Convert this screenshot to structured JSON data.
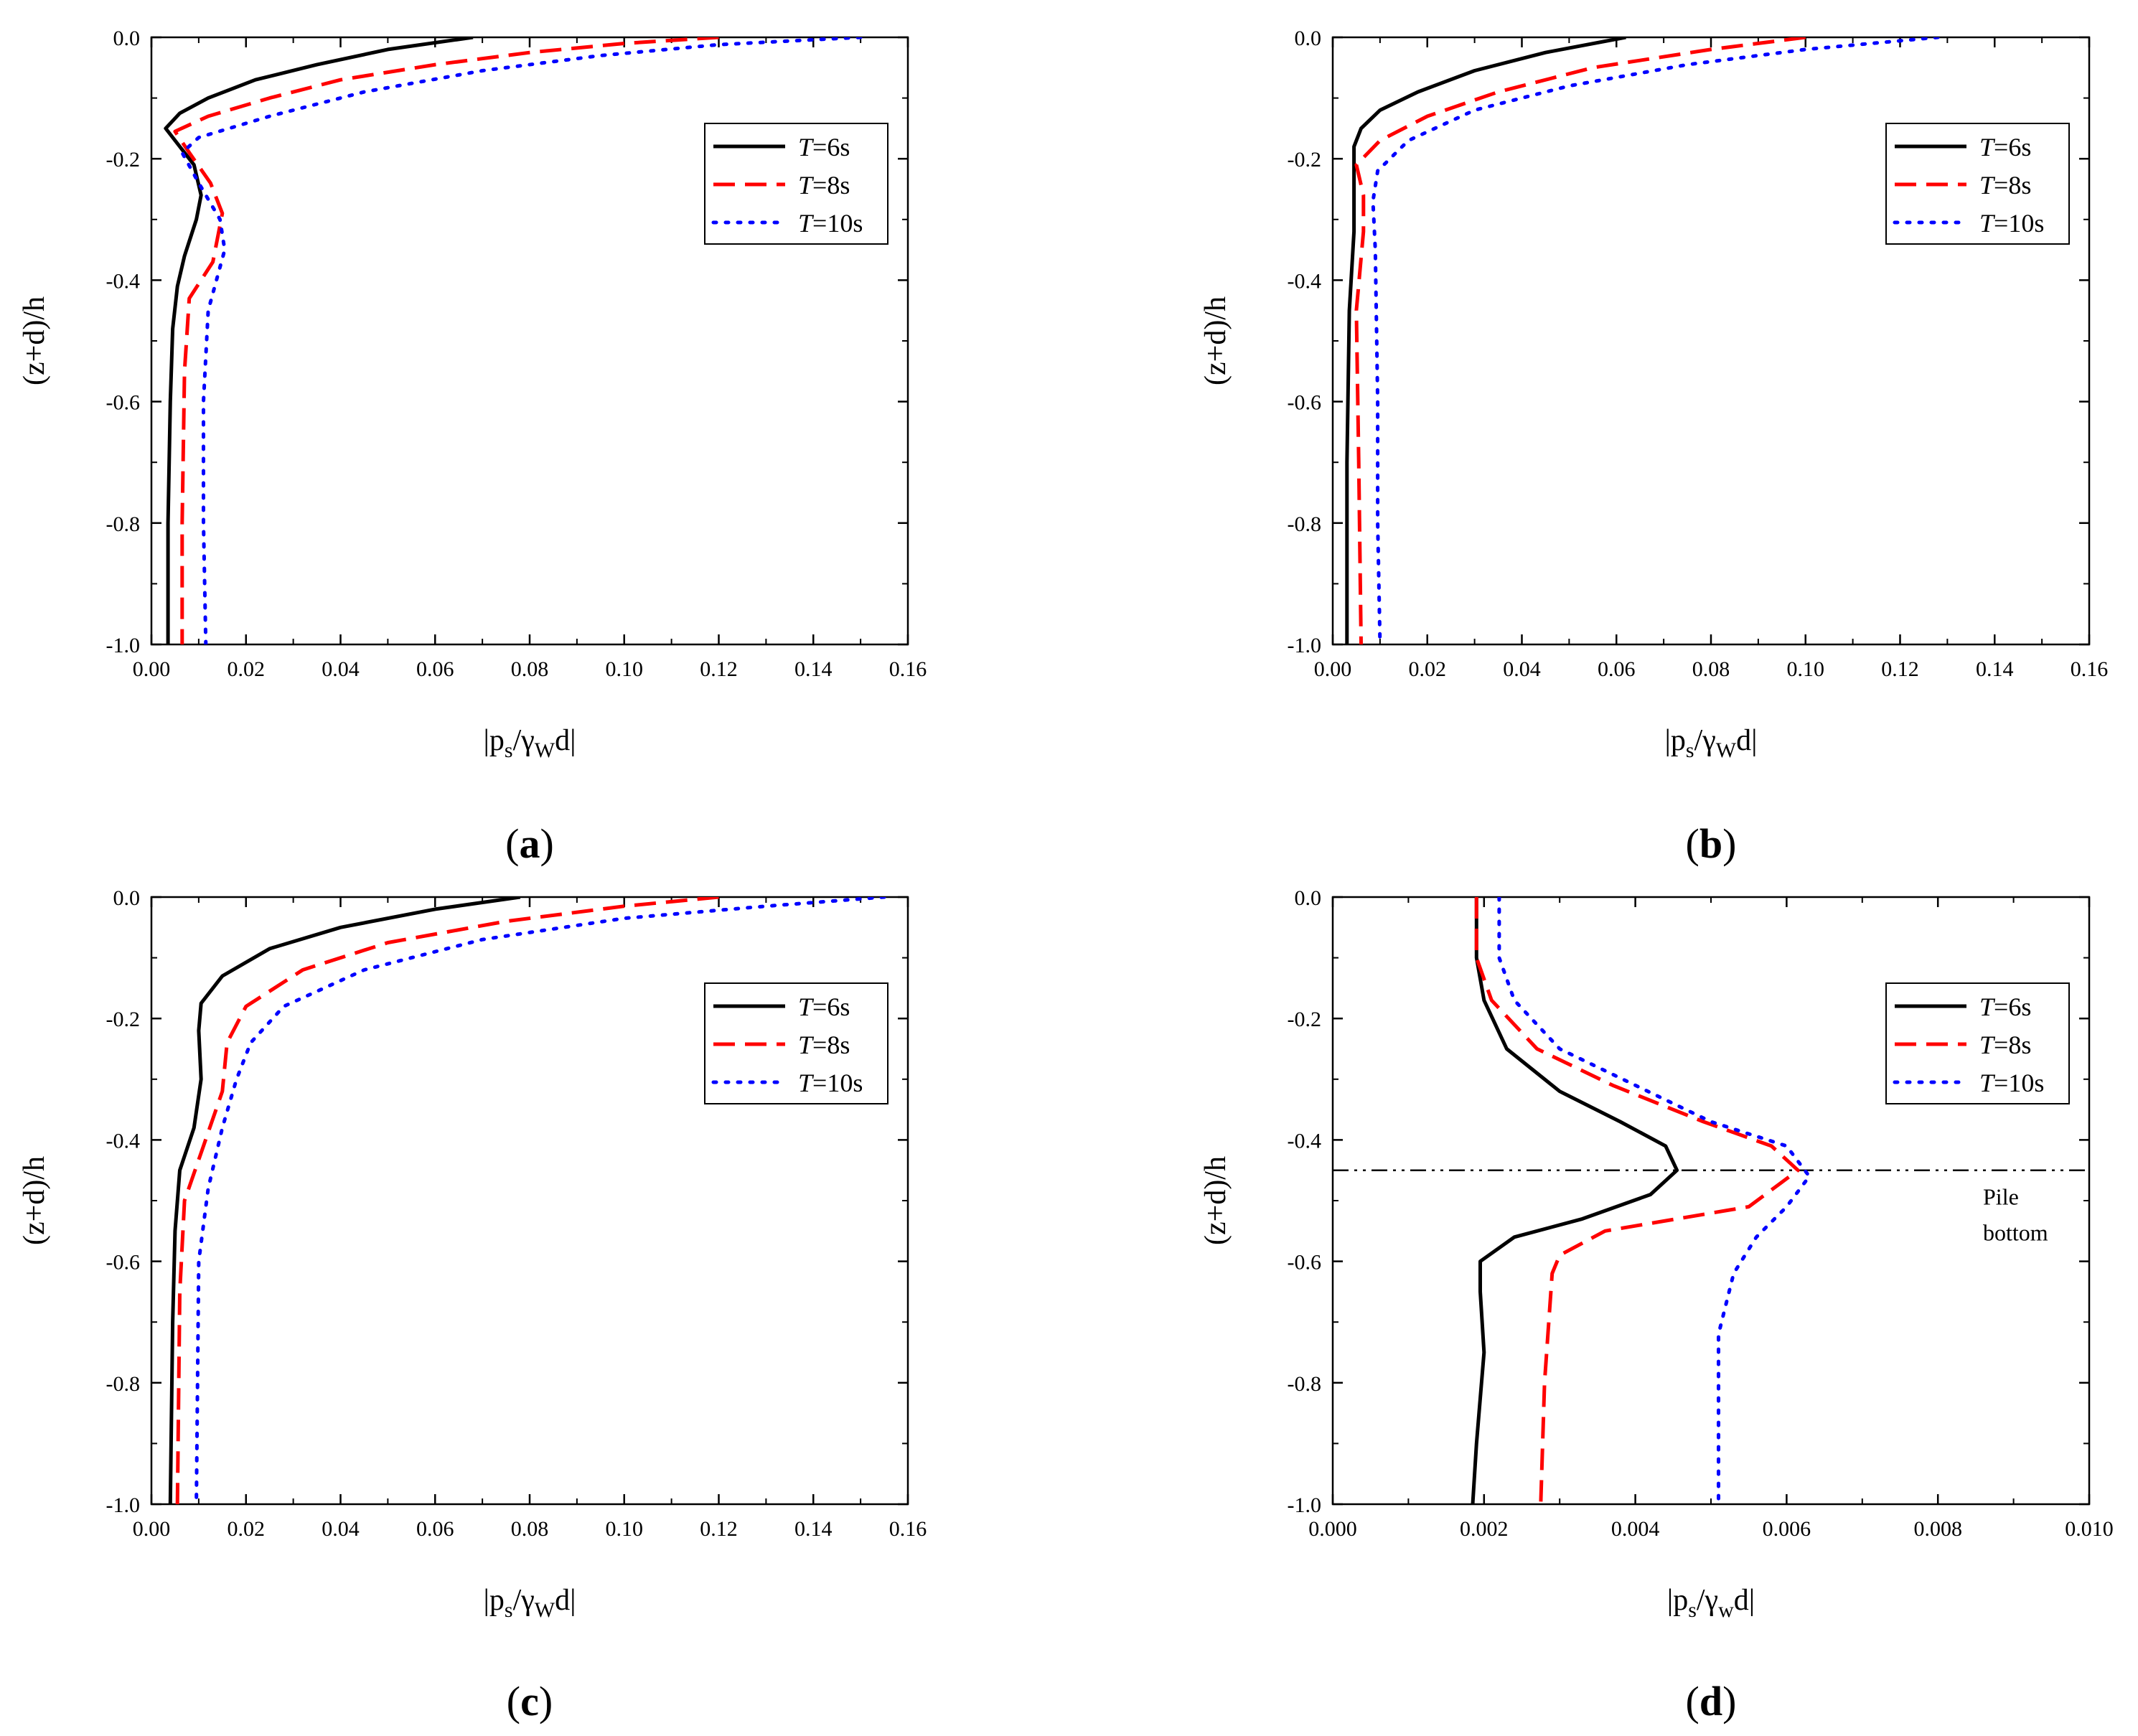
{
  "chart_data": [
    {
      "type": "line",
      "caption": "a",
      "xlabel": {
        "main": "|p",
        "sub1": "s",
        "mid": "/γ",
        "sub2": "W",
        "tail": "d|"
      },
      "ylabel": "(z+d)/h",
      "xlim": [
        0,
        0.16
      ],
      "ylim": [
        -1.0,
        0.0
      ],
      "xticks": [
        "0.00",
        "0.02",
        "0.04",
        "0.06",
        "0.08",
        "0.10",
        "0.12",
        "0.14",
        "0.16"
      ],
      "yticks": [
        "0.0",
        "-0.2",
        "-0.4",
        "-0.6",
        "-0.8",
        "-1.0"
      ],
      "legend_pos": "top-right",
      "series": [
        {
          "name": "T",
          "suffix": "=6s",
          "color": "#000000",
          "style": "solid",
          "points": [
            [
              0.068,
              0.0
            ],
            [
              0.05,
              -0.02
            ],
            [
              0.035,
              -0.045
            ],
            [
              0.022,
              -0.07
            ],
            [
              0.012,
              -0.1
            ],
            [
              0.006,
              -0.125
            ],
            [
              0.003,
              -0.15
            ],
            [
              0.0055,
              -0.175
            ],
            [
              0.009,
              -0.21
            ],
            [
              0.0105,
              -0.26
            ],
            [
              0.0095,
              -0.3
            ],
            [
              0.007,
              -0.36
            ],
            [
              0.0055,
              -0.41
            ],
            [
              0.0045,
              -0.48
            ],
            [
              0.004,
              -0.6
            ],
            [
              0.0035,
              -0.8
            ],
            [
              0.0035,
              -1.0
            ]
          ]
        },
        {
          "name": "T",
          "suffix": "=8s",
          "color": "#ff0000",
          "style": "dash",
          "points": [
            [
              0.12,
              0.0
            ],
            [
              0.1,
              -0.01
            ],
            [
              0.08,
              -0.025
            ],
            [
              0.06,
              -0.045
            ],
            [
              0.04,
              -0.07
            ],
            [
              0.025,
              -0.1
            ],
            [
              0.012,
              -0.13
            ],
            [
              0.005,
              -0.155
            ],
            [
              0.008,
              -0.19
            ],
            [
              0.0125,
              -0.24
            ],
            [
              0.015,
              -0.29
            ],
            [
              0.013,
              -0.37
            ],
            [
              0.008,
              -0.43
            ],
            [
              0.007,
              -0.55
            ],
            [
              0.0065,
              -0.8
            ],
            [
              0.0065,
              -1.0
            ]
          ]
        },
        {
          "name": "T",
          "suffix": "=10s",
          "color": "#0000ff",
          "style": "dot",
          "points": [
            [
              0.15,
              0.0
            ],
            [
              0.12,
              -0.012
            ],
            [
              0.095,
              -0.03
            ],
            [
              0.07,
              -0.055
            ],
            [
              0.045,
              -0.09
            ],
            [
              0.025,
              -0.13
            ],
            [
              0.01,
              -0.165
            ],
            [
              0.0065,
              -0.19
            ],
            [
              0.01,
              -0.24
            ],
            [
              0.0145,
              -0.3
            ],
            [
              0.0155,
              -0.35
            ],
            [
              0.012,
              -0.45
            ],
            [
              0.011,
              -0.6
            ],
            [
              0.011,
              -0.8
            ],
            [
              0.0115,
              -1.0
            ]
          ]
        }
      ]
    },
    {
      "type": "line",
      "caption": "b",
      "xlabel": {
        "main": "|p",
        "sub1": "s",
        "mid": "/γ",
        "sub2": "W",
        "tail": "d|"
      },
      "ylabel": "(z+d)/h",
      "xlim": [
        0,
        0.16
      ],
      "ylim": [
        -1.0,
        0.0
      ],
      "xticks": [
        "0.00",
        "0.02",
        "0.04",
        "0.06",
        "0.08",
        "0.10",
        "0.12",
        "0.14",
        "0.16"
      ],
      "yticks": [
        "0.0",
        "-0.2",
        "-0.4",
        "-0.6",
        "-0.8",
        "-1.0"
      ],
      "legend_pos": "top-right",
      "series": [
        {
          "name": "T",
          "suffix": "=6s",
          "color": "#000000",
          "style": "solid",
          "points": [
            [
              0.062,
              0.0
            ],
            [
              0.045,
              -0.025
            ],
            [
              0.03,
              -0.055
            ],
            [
              0.018,
              -0.09
            ],
            [
              0.01,
              -0.12
            ],
            [
              0.006,
              -0.15
            ],
            [
              0.0045,
              -0.18
            ],
            [
              0.0045,
              -0.25
            ],
            [
              0.0045,
              -0.32
            ],
            [
              0.0035,
              -0.45
            ],
            [
              0.003,
              -0.7
            ],
            [
              0.003,
              -1.0
            ]
          ]
        },
        {
          "name": "T",
          "suffix": "=8s",
          "color": "#ff0000",
          "style": "dash",
          "points": [
            [
              0.1,
              0.0
            ],
            [
              0.08,
              -0.02
            ],
            [
              0.055,
              -0.05
            ],
            [
              0.035,
              -0.09
            ],
            [
              0.02,
              -0.13
            ],
            [
              0.01,
              -0.17
            ],
            [
              0.005,
              -0.21
            ],
            [
              0.0065,
              -0.26
            ],
            [
              0.0065,
              -0.32
            ],
            [
              0.005,
              -0.45
            ],
            [
              0.0055,
              -0.7
            ],
            [
              0.006,
              -1.0
            ]
          ]
        },
        {
          "name": "T",
          "suffix": "=10s",
          "color": "#0000ff",
          "style": "dot",
          "points": [
            [
              0.128,
              0.0
            ],
            [
              0.1,
              -0.02
            ],
            [
              0.075,
              -0.045
            ],
            [
              0.05,
              -0.08
            ],
            [
              0.03,
              -0.12
            ],
            [
              0.016,
              -0.17
            ],
            [
              0.0095,
              -0.22
            ],
            [
              0.0085,
              -0.27
            ],
            [
              0.009,
              -0.35
            ],
            [
              0.0095,
              -0.6
            ],
            [
              0.0095,
              -0.8
            ],
            [
              0.01,
              -1.0
            ]
          ]
        }
      ]
    },
    {
      "type": "line",
      "caption": "c",
      "xlabel": {
        "main": "|p",
        "sub1": "s",
        "mid": "/γ",
        "sub2": "W",
        "tail": "d|"
      },
      "ylabel": "(z+d)/h",
      "xlim": [
        0,
        0.16
      ],
      "ylim": [
        -1.0,
        0.0
      ],
      "xticks": [
        "0.00",
        "0.02",
        "0.04",
        "0.06",
        "0.08",
        "0.10",
        "0.12",
        "0.14",
        "0.16"
      ],
      "yticks": [
        "0.0",
        "-0.2",
        "-0.4",
        "-0.6",
        "-0.8",
        "-1.0"
      ],
      "legend_pos": "top-right",
      "series": [
        {
          "name": "T",
          "suffix": "=6s",
          "color": "#000000",
          "style": "solid",
          "points": [
            [
              0.078,
              0.0
            ],
            [
              0.06,
              -0.02
            ],
            [
              0.04,
              -0.05
            ],
            [
              0.025,
              -0.085
            ],
            [
              0.015,
              -0.13
            ],
            [
              0.0105,
              -0.175
            ],
            [
              0.01,
              -0.22
            ],
            [
              0.0105,
              -0.3
            ],
            [
              0.009,
              -0.38
            ],
            [
              0.006,
              -0.45
            ],
            [
              0.005,
              -0.55
            ],
            [
              0.0045,
              -0.7
            ],
            [
              0.004,
              -1.0
            ]
          ]
        },
        {
          "name": "T",
          "suffix": "=8s",
          "color": "#ff0000",
          "style": "dash",
          "points": [
            [
              0.12,
              0.0
            ],
            [
              0.1,
              -0.015
            ],
            [
              0.075,
              -0.04
            ],
            [
              0.05,
              -0.075
            ],
            [
              0.032,
              -0.12
            ],
            [
              0.02,
              -0.18
            ],
            [
              0.016,
              -0.24
            ],
            [
              0.015,
              -0.32
            ],
            [
              0.011,
              -0.41
            ],
            [
              0.007,
              -0.5
            ],
            [
              0.006,
              -0.65
            ],
            [
              0.0055,
              -1.0
            ]
          ]
        },
        {
          "name": "T",
          "suffix": "=10s",
          "color": "#0000ff",
          "style": "dot",
          "points": [
            [
              0.155,
              0.0
            ],
            [
              0.13,
              -0.015
            ],
            [
              0.1,
              -0.035
            ],
            [
              0.07,
              -0.07
            ],
            [
              0.045,
              -0.12
            ],
            [
              0.028,
              -0.18
            ],
            [
              0.021,
              -0.24
            ],
            [
              0.018,
              -0.3
            ],
            [
              0.015,
              -0.38
            ],
            [
              0.012,
              -0.48
            ],
            [
              0.01,
              -0.6
            ],
            [
              0.0095,
              -1.0
            ]
          ]
        }
      ]
    },
    {
      "type": "line",
      "caption": "d",
      "xlabel": {
        "main": "|p",
        "sub1": "s",
        "mid": "/γ",
        "sub2": "w",
        "tail": "d|"
      },
      "ylabel": "(z+d)/h",
      "xlim": [
        0,
        0.01
      ],
      "ylim": [
        -1.0,
        0.0
      ],
      "xticks": [
        "0.000",
        "0.002",
        "0.004",
        "0.006",
        "0.008",
        "0.010"
      ],
      "yticks": [
        "0.0",
        "-0.2",
        "-0.4",
        "-0.6",
        "-0.8",
        "-1.0"
      ],
      "legend_pos": "top-right",
      "reference_line": {
        "y": -0.45,
        "label_line1": "Pile",
        "label_line2": "bottom"
      },
      "series": [
        {
          "name": "T",
          "suffix": "=6s",
          "color": "#000000",
          "style": "solid",
          "points": [
            [
              0.0019,
              0.0
            ],
            [
              0.0019,
              -0.1
            ],
            [
              0.002,
              -0.17
            ],
            [
              0.0023,
              -0.25
            ],
            [
              0.003,
              -0.32
            ],
            [
              0.0038,
              -0.37
            ],
            [
              0.0044,
              -0.41
            ],
            [
              0.00455,
              -0.45
            ],
            [
              0.0042,
              -0.49
            ],
            [
              0.0033,
              -0.53
            ],
            [
              0.0024,
              -0.56
            ],
            [
              0.00195,
              -0.6
            ],
            [
              0.00195,
              -0.65
            ],
            [
              0.002,
              -0.75
            ],
            [
              0.0019,
              -0.9
            ],
            [
              0.00185,
              -1.0
            ]
          ]
        },
        {
          "name": "T",
          "suffix": "=8s",
          "color": "#ff0000",
          "style": "dash",
          "points": [
            [
              0.0019,
              0.0
            ],
            [
              0.0019,
              -0.1
            ],
            [
              0.0021,
              -0.17
            ],
            [
              0.0027,
              -0.25
            ],
            [
              0.0037,
              -0.31
            ],
            [
              0.0049,
              -0.37
            ],
            [
              0.0058,
              -0.41
            ],
            [
              0.00615,
              -0.45
            ],
            [
              0.0055,
              -0.51
            ],
            [
              0.0036,
              -0.55
            ],
            [
              0.003,
              -0.59
            ],
            [
              0.0029,
              -0.62
            ],
            [
              0.0028,
              -0.8
            ],
            [
              0.00275,
              -1.0
            ]
          ]
        },
        {
          "name": "T",
          "suffix": "=10s",
          "color": "#0000ff",
          "style": "dot",
          "points": [
            [
              0.0022,
              0.0
            ],
            [
              0.0022,
              -0.1
            ],
            [
              0.0024,
              -0.17
            ],
            [
              0.003,
              -0.25
            ],
            [
              0.004,
              -0.31
            ],
            [
              0.005,
              -0.37
            ],
            [
              0.006,
              -0.41
            ],
            [
              0.0063,
              -0.46
            ],
            [
              0.006,
              -0.51
            ],
            [
              0.0056,
              -0.56
            ],
            [
              0.0053,
              -0.62
            ],
            [
              0.0051,
              -0.72
            ],
            [
              0.0051,
              -0.85
            ],
            [
              0.0051,
              -1.0
            ]
          ]
        }
      ]
    }
  ]
}
